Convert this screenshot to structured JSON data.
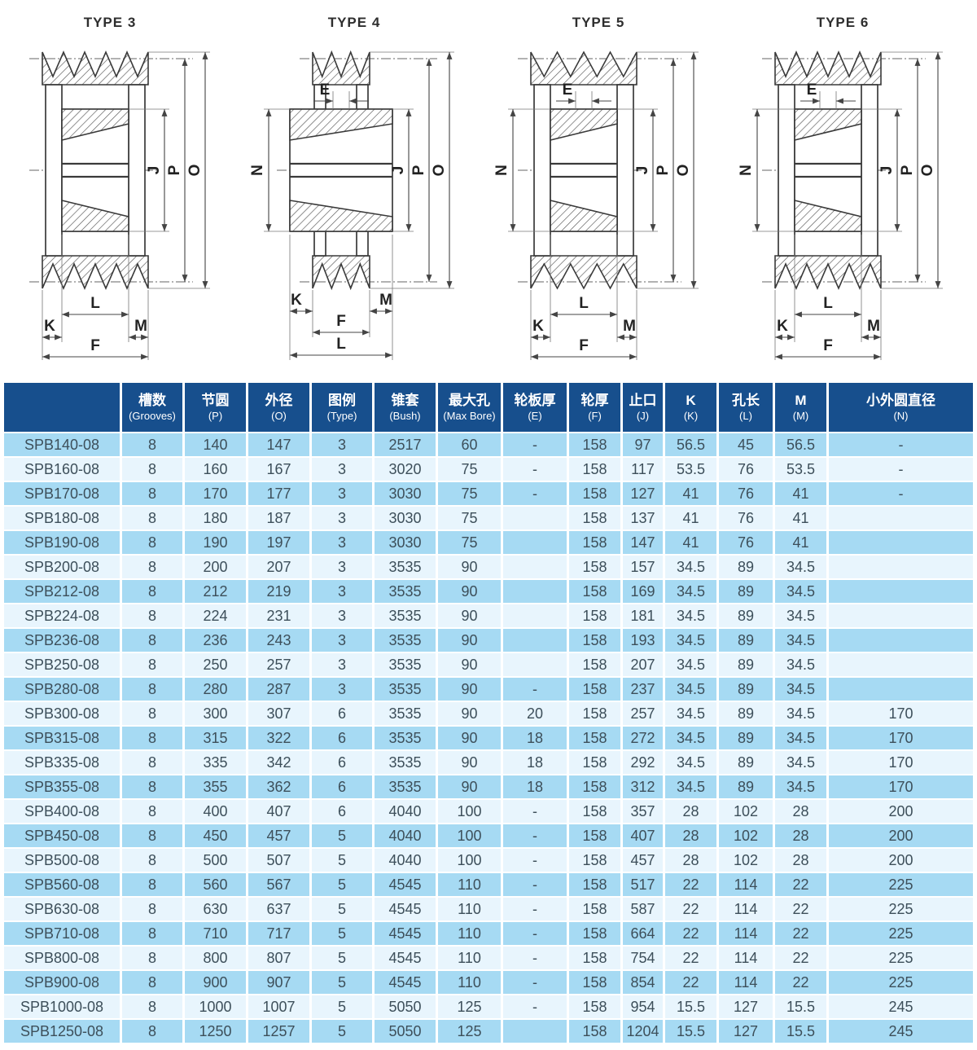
{
  "diagrams": [
    {
      "title": "TYPE 3",
      "variant": 3,
      "dims": {
        "J": "J",
        "P": "P",
        "O": "O",
        "K": "K",
        "L": "L",
        "M": "M",
        "F": "F"
      }
    },
    {
      "title": "TYPE 4",
      "variant": 4,
      "dims": {
        "J": "J",
        "P": "P",
        "O": "O",
        "K": "K",
        "L": "L",
        "M": "M",
        "F": "F",
        "E": "E",
        "N": "N"
      }
    },
    {
      "title": "TYPE 5",
      "variant": 5,
      "dims": {
        "J": "J",
        "P": "P",
        "O": "O",
        "K": "K",
        "L": "L",
        "M": "M",
        "F": "F",
        "E": "E",
        "N": "N"
      }
    },
    {
      "title": "TYPE 6",
      "variant": 6,
      "dims": {
        "J": "J",
        "P": "P",
        "O": "O",
        "K": "K",
        "L": "L",
        "M": "M",
        "F": "F",
        "E": "E",
        "N": "N"
      }
    }
  ],
  "table": {
    "columns": [
      {
        "zh": "",
        "en": ""
      },
      {
        "zh": "槽数",
        "en": "(Grooves)"
      },
      {
        "zh": "节圆",
        "en": "(P)"
      },
      {
        "zh": "外径",
        "en": "(O)"
      },
      {
        "zh": "图例",
        "en": "(Type)"
      },
      {
        "zh": "锥套",
        "en": "(Bush)"
      },
      {
        "zh": "最大孔",
        "en": "(Max Bore)"
      },
      {
        "zh": "轮板厚",
        "en": "(E)"
      },
      {
        "zh": "轮厚",
        "en": "(F)"
      },
      {
        "zh": "止口",
        "en": "(J)"
      },
      {
        "zh": "K",
        "en": "(K)"
      },
      {
        "zh": "孔长",
        "en": "(L)"
      },
      {
        "zh": "M",
        "en": "(M)"
      },
      {
        "zh": "小外圆直径",
        "en": "(N)"
      }
    ],
    "rows": [
      [
        "SPB140-08",
        "8",
        "140",
        "147",
        "3",
        "2517",
        "60",
        "-",
        "158",
        "97",
        "56.5",
        "45",
        "56.5",
        "-"
      ],
      [
        "SPB160-08",
        "8",
        "160",
        "167",
        "3",
        "3020",
        "75",
        "-",
        "158",
        "117",
        "53.5",
        "76",
        "53.5",
        "-"
      ],
      [
        "SPB170-08",
        "8",
        "170",
        "177",
        "3",
        "3030",
        "75",
        "-",
        "158",
        "127",
        "41",
        "76",
        "41",
        "-"
      ],
      [
        "SPB180-08",
        "8",
        "180",
        "187",
        "3",
        "3030",
        "75",
        "",
        "158",
        "137",
        "41",
        "76",
        "41",
        ""
      ],
      [
        "SPB190-08",
        "8",
        "190",
        "197",
        "3",
        "3030",
        "75",
        "",
        "158",
        "147",
        "41",
        "76",
        "41",
        ""
      ],
      [
        "SPB200-08",
        "8",
        "200",
        "207",
        "3",
        "3535",
        "90",
        "",
        "158",
        "157",
        "34.5",
        "89",
        "34.5",
        ""
      ],
      [
        "SPB212-08",
        "8",
        "212",
        "219",
        "3",
        "3535",
        "90",
        "",
        "158",
        "169",
        "34.5",
        "89",
        "34.5",
        ""
      ],
      [
        "SPB224-08",
        "8",
        "224",
        "231",
        "3",
        "3535",
        "90",
        "",
        "158",
        "181",
        "34.5",
        "89",
        "34.5",
        ""
      ],
      [
        "SPB236-08",
        "8",
        "236",
        "243",
        "3",
        "3535",
        "90",
        "",
        "158",
        "193",
        "34.5",
        "89",
        "34.5",
        ""
      ],
      [
        "SPB250-08",
        "8",
        "250",
        "257",
        "3",
        "3535",
        "90",
        "",
        "158",
        "207",
        "34.5",
        "89",
        "34.5",
        ""
      ],
      [
        "SPB280-08",
        "8",
        "280",
        "287",
        "3",
        "3535",
        "90",
        "-",
        "158",
        "237",
        "34.5",
        "89",
        "34.5",
        ""
      ],
      [
        "SPB300-08",
        "8",
        "300",
        "307",
        "6",
        "3535",
        "90",
        "20",
        "158",
        "257",
        "34.5",
        "89",
        "34.5",
        "170"
      ],
      [
        "SPB315-08",
        "8",
        "315",
        "322",
        "6",
        "3535",
        "90",
        "18",
        "158",
        "272",
        "34.5",
        "89",
        "34.5",
        "170"
      ],
      [
        "SPB335-08",
        "8",
        "335",
        "342",
        "6",
        "3535",
        "90",
        "18",
        "158",
        "292",
        "34.5",
        "89",
        "34.5",
        "170"
      ],
      [
        "SPB355-08",
        "8",
        "355",
        "362",
        "6",
        "3535",
        "90",
        "18",
        "158",
        "312",
        "34.5",
        "89",
        "34.5",
        "170"
      ],
      [
        "SPB400-08",
        "8",
        "400",
        "407",
        "6",
        "4040",
        "100",
        "-",
        "158",
        "357",
        "28",
        "102",
        "28",
        "200"
      ],
      [
        "SPB450-08",
        "8",
        "450",
        "457",
        "5",
        "4040",
        "100",
        "-",
        "158",
        "407",
        "28",
        "102",
        "28",
        "200"
      ],
      [
        "SPB500-08",
        "8",
        "500",
        "507",
        "5",
        "4040",
        "100",
        "-",
        "158",
        "457",
        "28",
        "102",
        "28",
        "200"
      ],
      [
        "SPB560-08",
        "8",
        "560",
        "567",
        "5",
        "4545",
        "110",
        "-",
        "158",
        "517",
        "22",
        "114",
        "22",
        "225"
      ],
      [
        "SPB630-08",
        "8",
        "630",
        "637",
        "5",
        "4545",
        "110",
        "-",
        "158",
        "587",
        "22",
        "114",
        "22",
        "225"
      ],
      [
        "SPB710-08",
        "8",
        "710",
        "717",
        "5",
        "4545",
        "110",
        "-",
        "158",
        "664",
        "22",
        "114",
        "22",
        "225"
      ],
      [
        "SPB800-08",
        "8",
        "800",
        "807",
        "5",
        "4545",
        "110",
        "-",
        "158",
        "754",
        "22",
        "114",
        "22",
        "225"
      ],
      [
        "SPB900-08",
        "8",
        "900",
        "907",
        "5",
        "4545",
        "110",
        "-",
        "158",
        "854",
        "22",
        "114",
        "22",
        "225"
      ],
      [
        "SPB1000-08",
        "8",
        "1000",
        "1007",
        "5",
        "5050",
        "125",
        "-",
        "158",
        "954",
        "15.5",
        "127",
        "15.5",
        "245"
      ],
      [
        "SPB1250-08",
        "8",
        "1250",
        "1257",
        "5",
        "5050",
        "125",
        "",
        "158",
        "1204",
        "15.5",
        "127",
        "15.5",
        "245"
      ]
    ]
  },
  "colors": {
    "header_bg": "#174f8d",
    "row_alt": "#a6daf3",
    "row_light": "#e8f5fd",
    "cell_text": "#3d4f5a",
    "drawing_line": "#3a3a3a"
  }
}
